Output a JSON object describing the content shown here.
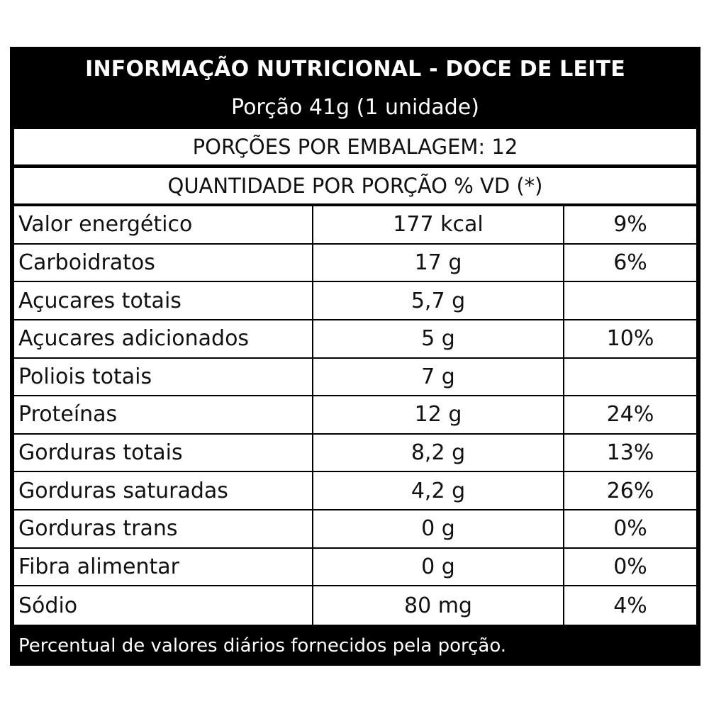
{
  "header": {
    "title": "INFORMAÇÃO NUTRICIONAL - DOCE DE LEITE",
    "serving": "Porção 41g (1 unidade)"
  },
  "servings_per_package": "PORÇÕES POR EMBALAGEM: 12",
  "quantity_header": "QUANTIDADE POR PORÇÃO % VD (*)",
  "rows": [
    {
      "name": "Valor energético",
      "amount": "177 kcal",
      "dv": "9%"
    },
    {
      "name": "Carboidratos",
      "amount": "17 g",
      "dv": "6%"
    },
    {
      "name": "Açucares totais",
      "amount": "5,7 g",
      "dv": ""
    },
    {
      "name": "Açucares adicionados",
      "amount": "5 g",
      "dv": "10%"
    },
    {
      "name": "Poliois totais",
      "amount": "7 g",
      "dv": ""
    },
    {
      "name": "Proteínas",
      "amount": "12 g",
      "dv": "24%"
    },
    {
      "name": "Gorduras totais",
      "amount": "8,2 g",
      "dv": "13%"
    },
    {
      "name": "Gorduras saturadas",
      "amount": "4,2 g",
      "dv": "26%"
    },
    {
      "name": "Gorduras trans",
      "amount": "0 g",
      "dv": "0%"
    },
    {
      "name": "Fibra alimentar",
      "amount": "0 g",
      "dv": "0%"
    },
    {
      "name": "Sódio",
      "amount": "80 mg",
      "dv": "4%"
    }
  ],
  "footer": "Percentual de valores diários fornecidos pela porção."
}
